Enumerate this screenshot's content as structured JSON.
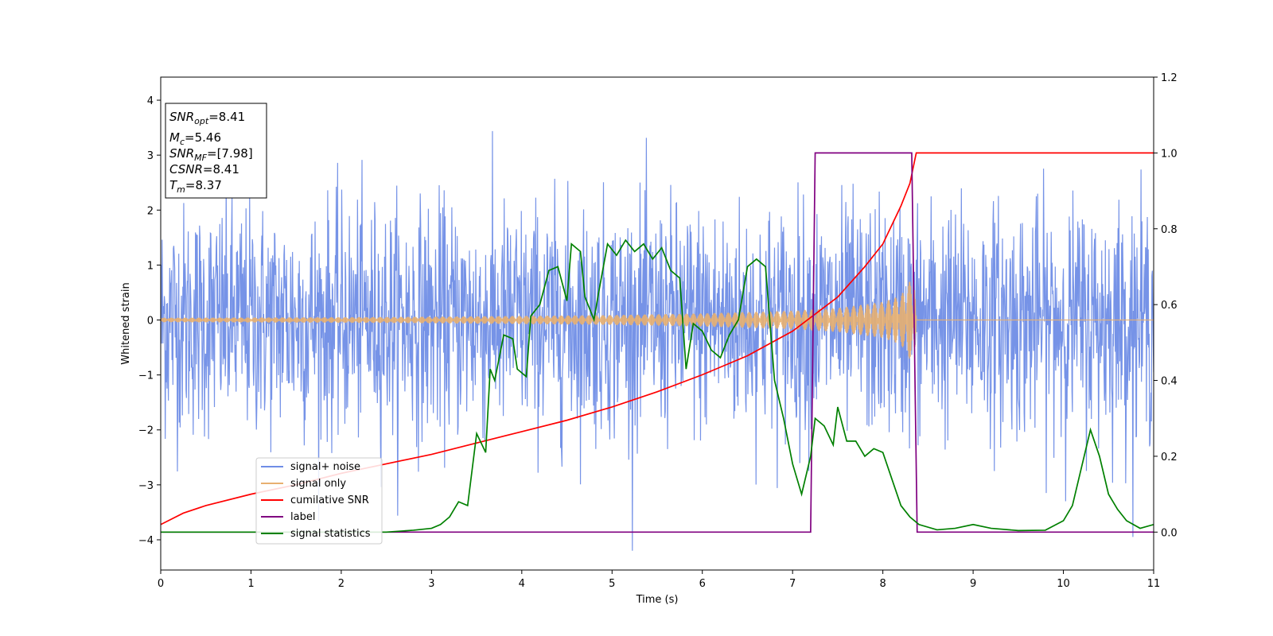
{
  "chart_data": {
    "type": "line",
    "xlabel": "Time (s)",
    "ylabel": "Whitened strain",
    "xlim": [
      0,
      11
    ],
    "ylim_left": [
      -4.55,
      4.42
    ],
    "ylim_right": [
      -0.1,
      1.2
    ],
    "x_ticks": [
      0,
      1,
      2,
      3,
      4,
      5,
      6,
      7,
      8,
      9,
      10,
      11
    ],
    "y_ticks_left": [
      -4,
      -3,
      -2,
      -1,
      0,
      1,
      2,
      3,
      4
    ],
    "y_ticks_right": [
      0.0,
      0.2,
      0.4,
      0.6,
      0.8,
      1.0,
      1.2
    ],
    "grid": false,
    "legend_position": "lower-left",
    "annotation": {
      "lines": [
        {
          "base": "SNR",
          "sub": "opt",
          "value": "=8.41"
        },
        {
          "base": "M",
          "sub": "c",
          "value": "=5.46"
        },
        {
          "base": "SNR",
          "sub": "MF",
          "value": "=[7.98]"
        },
        {
          "base": "CSNR",
          "sub": "",
          "value": "=8.41"
        },
        {
          "base": "T",
          "sub": "m",
          "value": "=8.37"
        }
      ]
    },
    "series": [
      {
        "name": "signal+ noise",
        "color": "#6f8de6",
        "axis": "left",
        "style": "noise",
        "noise_std": 1.05,
        "noise_sample_rate_hz": 200,
        "noise_clip": [
          -4.2,
          4.0
        ]
      },
      {
        "name": "signal only",
        "color": "#e8b070",
        "axis": "left",
        "style": "chirp",
        "merger_time": 8.37,
        "envelope_points": [
          [
            0,
            0.04
          ],
          [
            1,
            0.045
          ],
          [
            2,
            0.05
          ],
          [
            3,
            0.06
          ],
          [
            4,
            0.075
          ],
          [
            5,
            0.09
          ],
          [
            6,
            0.12
          ],
          [
            7,
            0.17
          ],
          [
            7.5,
            0.22
          ],
          [
            8,
            0.33
          ],
          [
            8.2,
            0.45
          ],
          [
            8.35,
            0.85
          ],
          [
            8.37,
            0.0
          ]
        ]
      },
      {
        "name": "cumilative SNR",
        "color": "#ff0000",
        "axis": "right",
        "points": [
          [
            0,
            0.02
          ],
          [
            0.25,
            0.05
          ],
          [
            0.5,
            0.07
          ],
          [
            1,
            0.1
          ],
          [
            1.5,
            0.125
          ],
          [
            2,
            0.155
          ],
          [
            2.5,
            0.18
          ],
          [
            3,
            0.205
          ],
          [
            3.5,
            0.235
          ],
          [
            4,
            0.265
          ],
          [
            4.5,
            0.295
          ],
          [
            5,
            0.33
          ],
          [
            5.5,
            0.37
          ],
          [
            6,
            0.415
          ],
          [
            6.5,
            0.465
          ],
          [
            7,
            0.53
          ],
          [
            7.5,
            0.62
          ],
          [
            7.8,
            0.7
          ],
          [
            8,
            0.76
          ],
          [
            8.2,
            0.86
          ],
          [
            8.3,
            0.92
          ],
          [
            8.37,
            1.0
          ],
          [
            11,
            1.0
          ]
        ]
      },
      {
        "name": "label",
        "color": "#800080",
        "axis": "right",
        "points": [
          [
            0,
            0.0
          ],
          [
            7.2,
            0.0
          ],
          [
            7.25,
            1.0
          ],
          [
            8.32,
            1.0
          ],
          [
            8.38,
            0.0
          ],
          [
            11,
            0.0
          ]
        ]
      },
      {
        "name": "signal statistics",
        "color": "#008000",
        "axis": "right",
        "points": [
          [
            0,
            0.0
          ],
          [
            1,
            0.0
          ],
          [
            2,
            0.0
          ],
          [
            2.5,
            0.0
          ],
          [
            2.8,
            0.005
          ],
          [
            3.0,
            0.01
          ],
          [
            3.1,
            0.02
          ],
          [
            3.2,
            0.04
          ],
          [
            3.3,
            0.08
          ],
          [
            3.4,
            0.07
          ],
          [
            3.5,
            0.26
          ],
          [
            3.6,
            0.21
          ],
          [
            3.65,
            0.43
          ],
          [
            3.7,
            0.4
          ],
          [
            3.8,
            0.52
          ],
          [
            3.9,
            0.51
          ],
          [
            3.95,
            0.43
          ],
          [
            4.05,
            0.41
          ],
          [
            4.1,
            0.57
          ],
          [
            4.2,
            0.6
          ],
          [
            4.3,
            0.69
          ],
          [
            4.4,
            0.7
          ],
          [
            4.5,
            0.61
          ],
          [
            4.55,
            0.76
          ],
          [
            4.65,
            0.74
          ],
          [
            4.7,
            0.62
          ],
          [
            4.8,
            0.56
          ],
          [
            4.85,
            0.63
          ],
          [
            4.95,
            0.76
          ],
          [
            5.05,
            0.73
          ],
          [
            5.15,
            0.77
          ],
          [
            5.25,
            0.74
          ],
          [
            5.35,
            0.76
          ],
          [
            5.45,
            0.72
          ],
          [
            5.55,
            0.75
          ],
          [
            5.65,
            0.69
          ],
          [
            5.75,
            0.67
          ],
          [
            5.82,
            0.43
          ],
          [
            5.9,
            0.55
          ],
          [
            6.0,
            0.53
          ],
          [
            6.1,
            0.48
          ],
          [
            6.2,
            0.46
          ],
          [
            6.3,
            0.52
          ],
          [
            6.4,
            0.56
          ],
          [
            6.5,
            0.7
          ],
          [
            6.6,
            0.72
          ],
          [
            6.7,
            0.7
          ],
          [
            6.8,
            0.4
          ],
          [
            6.9,
            0.3
          ],
          [
            7.0,
            0.18
          ],
          [
            7.1,
            0.1
          ],
          [
            7.2,
            0.2
          ],
          [
            7.25,
            0.3
          ],
          [
            7.35,
            0.28
          ],
          [
            7.45,
            0.23
          ],
          [
            7.5,
            0.33
          ],
          [
            7.6,
            0.24
          ],
          [
            7.7,
            0.24
          ],
          [
            7.8,
            0.2
          ],
          [
            7.9,
            0.22
          ],
          [
            8.0,
            0.21
          ],
          [
            8.1,
            0.14
          ],
          [
            8.2,
            0.07
          ],
          [
            8.3,
            0.04
          ],
          [
            8.4,
            0.02
          ],
          [
            8.6,
            0.006
          ],
          [
            8.8,
            0.01
          ],
          [
            9.0,
            0.02
          ],
          [
            9.2,
            0.01
          ],
          [
            9.5,
            0.004
          ],
          [
            9.8,
            0.005
          ],
          [
            10.0,
            0.03
          ],
          [
            10.1,
            0.07
          ],
          [
            10.2,
            0.17
          ],
          [
            10.3,
            0.27
          ],
          [
            10.4,
            0.2
          ],
          [
            10.5,
            0.1
          ],
          [
            10.6,
            0.06
          ],
          [
            10.7,
            0.03
          ],
          [
            10.85,
            0.01
          ],
          [
            11,
            0.02
          ]
        ]
      }
    ]
  }
}
